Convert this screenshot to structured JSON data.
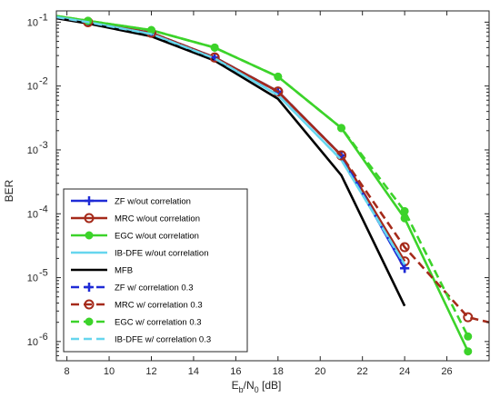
{
  "chart_data": {
    "type": "line",
    "ylabel": "BER",
    "xlabel": {
      "main": "E",
      "sub1": "b",
      "mid": "/N",
      "sub2": "0",
      "unit": " [dB]"
    },
    "xlim": [
      7.5,
      28
    ],
    "ylim": [
      5e-07,
      0.15
    ],
    "yscale": "log",
    "x_ticks": [
      8,
      10,
      12,
      14,
      16,
      18,
      20,
      22,
      24,
      26
    ],
    "y_ticks": [
      {
        "value": 0.1,
        "base": "10",
        "exp": "-1"
      },
      {
        "value": 0.01,
        "base": "10",
        "exp": "-2"
      },
      {
        "value": 0.001,
        "base": "10",
        "exp": "-3"
      },
      {
        "value": 0.0001,
        "base": "10",
        "exp": "-4"
      },
      {
        "value": 1e-05,
        "base": "10",
        "exp": "-5"
      },
      {
        "value": 1e-06,
        "base": "10",
        "exp": "-6"
      }
    ],
    "grid": false,
    "legend_position": "bottom-left",
    "series": [
      {
        "name": "ZF w/out correlation",
        "color": "#1f2bd6",
        "dash": "solid",
        "marker": "plus",
        "x": [
          7.5,
          9,
          12,
          15,
          18,
          21,
          24
        ],
        "y": [
          0.12,
          0.1,
          0.068,
          0.028,
          0.0082,
          0.00082,
          1.4e-05
        ]
      },
      {
        "name": "MRC w/out correlation",
        "color": "#a52a1a",
        "dash": "solid",
        "marker": "circle-open",
        "x": [
          7.5,
          9,
          12,
          15,
          18,
          21,
          24
        ],
        "y": [
          0.12,
          0.1,
          0.068,
          0.028,
          0.0082,
          0.00082,
          1.8e-05
        ]
      },
      {
        "name": "EGC w/out correlation",
        "color": "#3cd32a",
        "dash": "solid",
        "marker": "circle-filled",
        "x": [
          7.5,
          9,
          12,
          15,
          18,
          21,
          24,
          27
        ],
        "y": [
          0.125,
          0.105,
          0.075,
          0.04,
          0.014,
          0.0022,
          8.5e-05,
          7e-07
        ]
      },
      {
        "name": "IB-DFE w/out correlation",
        "color": "#66d6ee",
        "dash": "solid",
        "marker": "none",
        "x": [
          7.5,
          9,
          12,
          15,
          18,
          21,
          24
        ],
        "y": [
          0.12,
          0.1,
          0.065,
          0.027,
          0.0072,
          0.0007,
          1.6e-05
        ]
      },
      {
        "name": "MFB",
        "color": "#000000",
        "dash": "solid",
        "marker": "none",
        "x": [
          7.5,
          9,
          12,
          15,
          18,
          21,
          24
        ],
        "y": [
          0.115,
          0.095,
          0.06,
          0.025,
          0.0063,
          0.0004,
          3.6e-06
        ]
      },
      {
        "name": "ZF w/ correlation 0.3",
        "color": "#1f2bd6",
        "dash": "dashed",
        "marker": "plus",
        "x": [
          7.5,
          9,
          12,
          15,
          18,
          21,
          24
        ],
        "y": [
          0.12,
          0.1,
          0.068,
          0.028,
          0.0082,
          0.00082,
          1.4e-05
        ]
      },
      {
        "name": "MRC w/ correlation 0.3",
        "color": "#a52a1a",
        "dash": "dashed",
        "marker": "circle-open",
        "x": [
          7.5,
          9,
          12,
          15,
          18,
          21,
          24,
          27,
          28
        ],
        "y": [
          0.12,
          0.1,
          0.068,
          0.028,
          0.0082,
          0.00082,
          3e-05,
          2.4e-06,
          2e-06
        ]
      },
      {
        "name": "EGC w/ correlation 0.3",
        "color": "#3cd32a",
        "dash": "dashed",
        "marker": "circle-filled",
        "x": [
          7.5,
          9,
          12,
          15,
          18,
          21,
          24,
          27
        ],
        "y": [
          0.125,
          0.105,
          0.075,
          0.04,
          0.014,
          0.0022,
          0.00011,
          1.2e-06
        ]
      },
      {
        "name": "IB-DFE w/ correlation 0.3",
        "color": "#66d6ee",
        "dash": "dashed",
        "marker": "none",
        "x": [
          7.5,
          9,
          12,
          15,
          18,
          21,
          24
        ],
        "y": [
          0.12,
          0.1,
          0.065,
          0.027,
          0.0072,
          0.0007,
          1.6e-05
        ]
      }
    ]
  }
}
